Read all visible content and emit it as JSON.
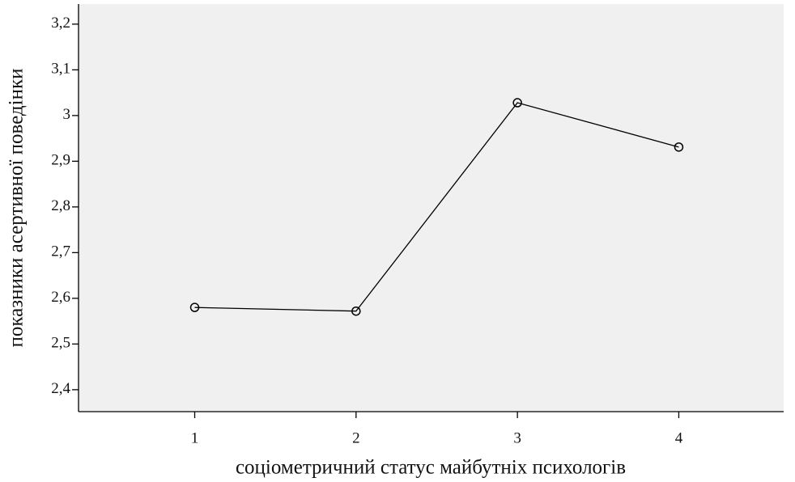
{
  "chart_data": {
    "type": "line",
    "x_label": "соціометричний статус майбутніх психологів",
    "y_label": "показники асертивної поведінки",
    "x": [
      1,
      2,
      3,
      4
    ],
    "series": [
      {
        "color": "#000000",
        "values": [
          2.58,
          2.572,
          3.028,
          2.931
        ]
      }
    ],
    "xlim": [
      0.28,
      4.65
    ],
    "xticks": [
      1,
      2,
      3,
      4
    ],
    "ylim": [
      2.352,
      3.244
    ],
    "yticks": [
      {
        "value": 2.4,
        "label": "2,4"
      },
      {
        "value": 2.5,
        "label": "2,5"
      },
      {
        "value": 2.6,
        "label": "2,6"
      },
      {
        "value": 2.7,
        "label": "2,7"
      },
      {
        "value": 2.8,
        "label": "2,8"
      },
      {
        "value": 2.9,
        "label": "2,9"
      },
      3,
      {
        "value": 3.1,
        "label": "3,1"
      },
      {
        "value": 3.2,
        "label": "3,2"
      }
    ],
    "plot_background": "#f0f0f0"
  }
}
